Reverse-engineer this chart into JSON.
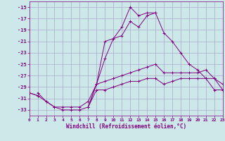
{
  "xlabel": "Windchill (Refroidissement éolien,°C)",
  "background_color": "#cce8e8",
  "line_color": "#800080",
  "grid_color": "#aaaacc",
  "x_ticks": [
    0,
    1,
    2,
    3,
    4,
    5,
    6,
    7,
    8,
    9,
    10,
    11,
    12,
    13,
    14,
    15,
    16,
    17,
    18,
    19,
    20,
    21,
    22,
    23
  ],
  "y_ticks": [
    -33,
    -31,
    -29,
    -27,
    -25,
    -23,
    -21,
    -19,
    -17,
    -15
  ],
  "xlim": [
    0,
    23
  ],
  "ylim": [
    -34,
    -14
  ],
  "series": [
    [
      null,
      -30.0,
      -31.5,
      -32.5,
      -33.0,
      -33.0,
      -33.0,
      -32.5,
      -28.5,
      -21.0,
      -20.5,
      -18.5,
      -15.0,
      -16.5,
      -16.0,
      -16.0,
      -19.5,
      -21.0,
      -23.0,
      -25.0,
      -26.0,
      -27.5,
      -29.5,
      -29.5
    ],
    [
      null,
      -30.5,
      -31.5,
      -32.5,
      -32.5,
      -32.5,
      -32.5,
      -31.5,
      -28.5,
      -24.0,
      -20.5,
      -20.0,
      -17.5,
      -18.5,
      -16.5,
      -16.0,
      null,
      null,
      null,
      null,
      null,
      null,
      null,
      null
    ],
    [
      -30.0,
      -30.5,
      null,
      null,
      null,
      null,
      null,
      -32.5,
      -28.5,
      -28.0,
      -27.5,
      -27.0,
      -26.5,
      -26.0,
      -25.5,
      -25.0,
      -26.5,
      -26.5,
      -26.5,
      -26.5,
      -26.5,
      -26.0,
      -27.5,
      -28.5
    ],
    [
      -30.0,
      -30.5,
      null,
      null,
      null,
      null,
      null,
      -32.5,
      -29.5,
      -29.5,
      -29.0,
      -28.5,
      -28.0,
      -28.0,
      -27.5,
      -27.5,
      -28.5,
      -28.0,
      -27.5,
      -27.5,
      -27.5,
      -27.5,
      -27.5,
      -29.5
    ]
  ]
}
